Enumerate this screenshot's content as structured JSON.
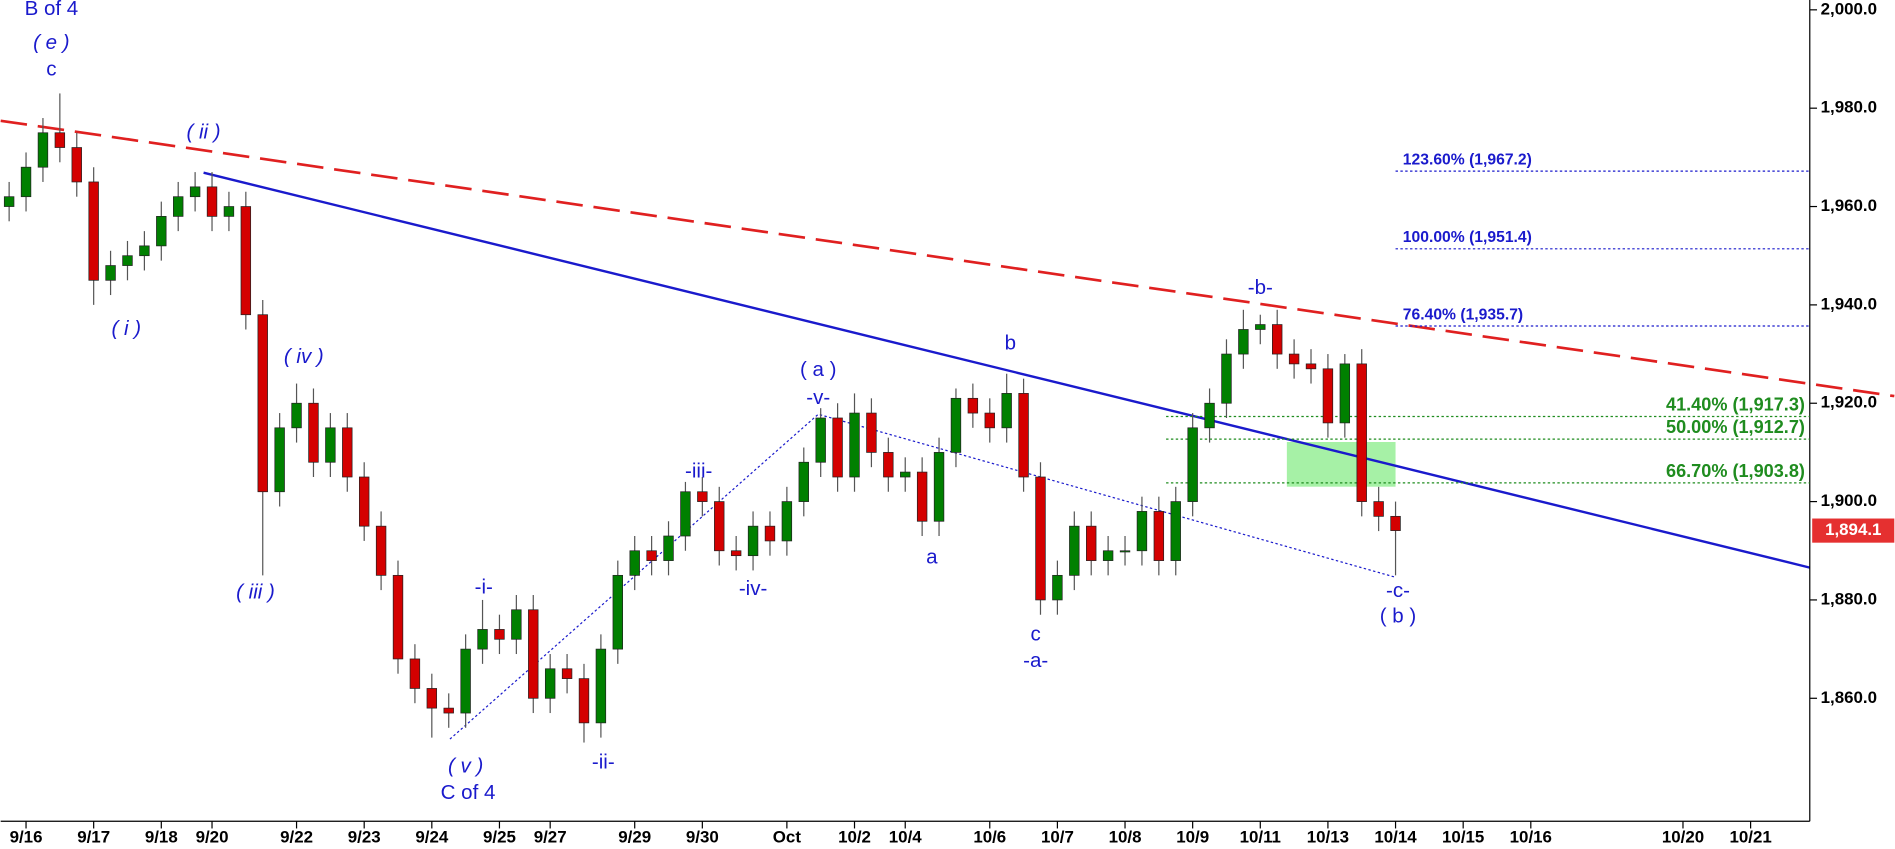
{
  "chart_data": {
    "type": "candlestick",
    "categories": [
      null,
      "9/16",
      null,
      null,
      null,
      "9/17",
      null,
      null,
      null,
      "9/18",
      null,
      null,
      "9/20",
      null,
      null,
      null,
      null,
      "9/22",
      null,
      null,
      null,
      "9/23",
      null,
      null,
      null,
      "9/24",
      null,
      null,
      null,
      "9/25",
      null,
      null,
      "9/27",
      null,
      null,
      null,
      null,
      "9/29",
      null,
      null,
      null,
      "9/30",
      null,
      null,
      null,
      null,
      "Oct",
      null,
      null,
      null,
      "10/2",
      null,
      null,
      "10/4",
      null,
      null,
      null,
      null,
      "10/6",
      null,
      null,
      null,
      "10/7",
      null,
      null,
      null,
      "10/8",
      null,
      null,
      null,
      "10/9",
      null,
      null,
      null,
      "10/11",
      null,
      null,
      null,
      "10/13",
      null,
      null,
      null,
      "10/14",
      null,
      null,
      null,
      "10/15",
      null,
      null,
      null,
      "10/16",
      null,
      null,
      null,
      null,
      null,
      null,
      null,
      null,
      "10/20",
      null,
      null,
      null,
      "10/21",
      null,
      null,
      null
    ],
    "open": [
      1960,
      1962,
      1968,
      1975,
      1972,
      1965,
      1945,
      1948,
      1950,
      1952,
      1958,
      1962,
      1964,
      1958,
      1960,
      1938,
      1902,
      1915,
      1920,
      1908,
      1915,
      1905,
      1895,
      1885,
      1868,
      1862,
      1858,
      1857,
      1870,
      1874,
      1872,
      1878,
      1860,
      1866,
      1864,
      1855,
      1870,
      1885,
      1890,
      1888,
      1893,
      1902,
      1900,
      1890,
      1889,
      1895,
      1892,
      1900,
      1908,
      1917,
      1905,
      1918,
      1910,
      1905,
      1906,
      1896,
      1910,
      1921,
      1918,
      1915,
      1922,
      1905,
      1880,
      1885,
      1895,
      1888,
      1890,
      1890,
      1898,
      1888,
      1900,
      1915,
      1920,
      1930,
      1935,
      1936,
      1930,
      1928,
      1927,
      1916,
      1928,
      1900,
      1897,
      null,
      null,
      null,
      null,
      null,
      null,
      null,
      null,
      null,
      null,
      null,
      null,
      null,
      null,
      null,
      null,
      null,
      null,
      null,
      null,
      null,
      null,
      null,
      null
    ],
    "high": [
      1965,
      1971,
      1978,
      1983,
      1975,
      1968,
      1951,
      1953,
      1955,
      1961,
      1965,
      1967,
      1967,
      1963,
      1963,
      1941,
      1918,
      1924,
      1923,
      1918,
      1918,
      1908,
      1898,
      1888,
      1871,
      1865,
      1861,
      1873,
      1880,
      1877,
      1881,
      1881,
      1869,
      1869,
      1867,
      1873,
      1888,
      1893,
      1893,
      1896,
      1904,
      1905,
      1903,
      1893,
      1898,
      1898,
      1903,
      1911,
      1919,
      1920,
      1922,
      1921,
      1913,
      1909,
      1909,
      1913,
      1923,
      1924,
      1921,
      1926,
      1925,
      1908,
      1888,
      1898,
      1898,
      1893,
      1893,
      1901,
      1901,
      1903,
      1918,
      1923,
      1933,
      1939,
      1938,
      1939,
      1933,
      1931,
      1930,
      1930,
      1931,
      1903,
      1900,
      null,
      null,
      null,
      null,
      null,
      null,
      null,
      null,
      null,
      null,
      null,
      null,
      null,
      null,
      null,
      null,
      null,
      null,
      null,
      null,
      null,
      null,
      null,
      null
    ],
    "low": [
      1957,
      1959,
      1965,
      1969,
      1962,
      1940,
      1942,
      1945,
      1947,
      1949,
      1955,
      1959,
      1955,
      1955,
      1935,
      1885,
      1899,
      1912,
      1905,
      1905,
      1902,
      1892,
      1882,
      1865,
      1859,
      1852,
      1854,
      1854,
      1867,
      1869,
      1869,
      1857,
      1857,
      1861,
      1851,
      1852,
      1867,
      1882,
      1885,
      1885,
      1890,
      1897,
      1887,
      1886,
      1886,
      1889,
      1889,
      1897,
      1905,
      1902,
      1902,
      1907,
      1902,
      1902,
      1893,
      1893,
      1907,
      1915,
      1912,
      1912,
      1902,
      1877,
      1877,
      1882,
      1885,
      1885,
      1887,
      1887,
      1885,
      1885,
      1897,
      1912,
      1917,
      1927,
      1932,
      1927,
      1925,
      1924,
      1913,
      1913,
      1897,
      1894,
      1885,
      null,
      null,
      null,
      null,
      null,
      null,
      null,
      null,
      null,
      null,
      null,
      null,
      null,
      null,
      null,
      null,
      null,
      null,
      null,
      null,
      null,
      null,
      null,
      null
    ],
    "close": [
      1962,
      1968,
      1975,
      1972,
      1965,
      1945,
      1948,
      1950,
      1952,
      1958,
      1962,
      1964,
      1958,
      1960,
      1938,
      1902,
      1915,
      1920,
      1908,
      1915,
      1905,
      1895,
      1885,
      1868,
      1862,
      1858,
      1857,
      1870,
      1874,
      1872,
      1878,
      1860,
      1866,
      1864,
      1855,
      1870,
      1885,
      1890,
      1888,
      1893,
      1902,
      1900,
      1890,
      1889,
      1895,
      1892,
      1900,
      1908,
      1917,
      1905,
      1918,
      1910,
      1905,
      1906,
      1896,
      1910,
      1921,
      1918,
      1915,
      1922,
      1905,
      1880,
      1885,
      1895,
      1888,
      1890,
      1890,
      1898,
      1888,
      1900,
      1915,
      1920,
      1930,
      1935,
      1936,
      1930,
      1928,
      1927,
      1916,
      1928,
      1900,
      1897,
      1894.1,
      null,
      null,
      null,
      null,
      null,
      null,
      null,
      null,
      null,
      null,
      null,
      null,
      null,
      null,
      null,
      null,
      null,
      null,
      null,
      null,
      null,
      null,
      null,
      null
    ],
    "up_color": "#008000",
    "down_color": "#d40000",
    "ylim": [
      1835,
      2002
    ],
    "yticks": [
      {
        "value": 1860,
        "label": "1,860.0"
      },
      {
        "value": 1880,
        "label": "1,880.0"
      },
      {
        "value": 1900,
        "label": "1,900.0"
      },
      {
        "value": 1920,
        "label": "1,920.0"
      },
      {
        "value": 1940,
        "label": "1,940.0"
      },
      {
        "value": 1960,
        "label": "1,960.0"
      },
      {
        "value": 1980,
        "label": "1,980.0"
      },
      {
        "value": 2000,
        "label": "2,000.0"
      }
    ],
    "last_price_label": "1,894.1",
    "fib_extensions": {
      "color": "#1a1acc",
      "levels": [
        {
          "value": 1967.2,
          "label": "123.60% (1,967.2)"
        },
        {
          "value": 1951.4,
          "label": "100.00% (1,951.4)"
        },
        {
          "value": 1935.7,
          "label": "76.40% (1,935.7)"
        }
      ]
    },
    "fib_retracements": {
      "color": "#1f8c1f",
      "levels": [
        {
          "value": 1917.3,
          "label": "41.40% (1,917.3)"
        },
        {
          "value": 1912.7,
          "label": "50.00% (1,912.7)"
        },
        {
          "value": 1903.8,
          "label": "66.70% (1,903.8)"
        }
      ]
    },
    "wave_labels": [
      "B of 4",
      "( e )",
      "c",
      "( ii )",
      "( i )",
      "( iv )",
      "( iii )",
      "( v )",
      "C of 4",
      "-i-",
      "-ii-",
      "-iii-",
      "-iv-",
      "( a )",
      "-v-",
      "a",
      "b",
      "c",
      "-a-",
      "-b-",
      "-c-",
      "( b )"
    ]
  }
}
